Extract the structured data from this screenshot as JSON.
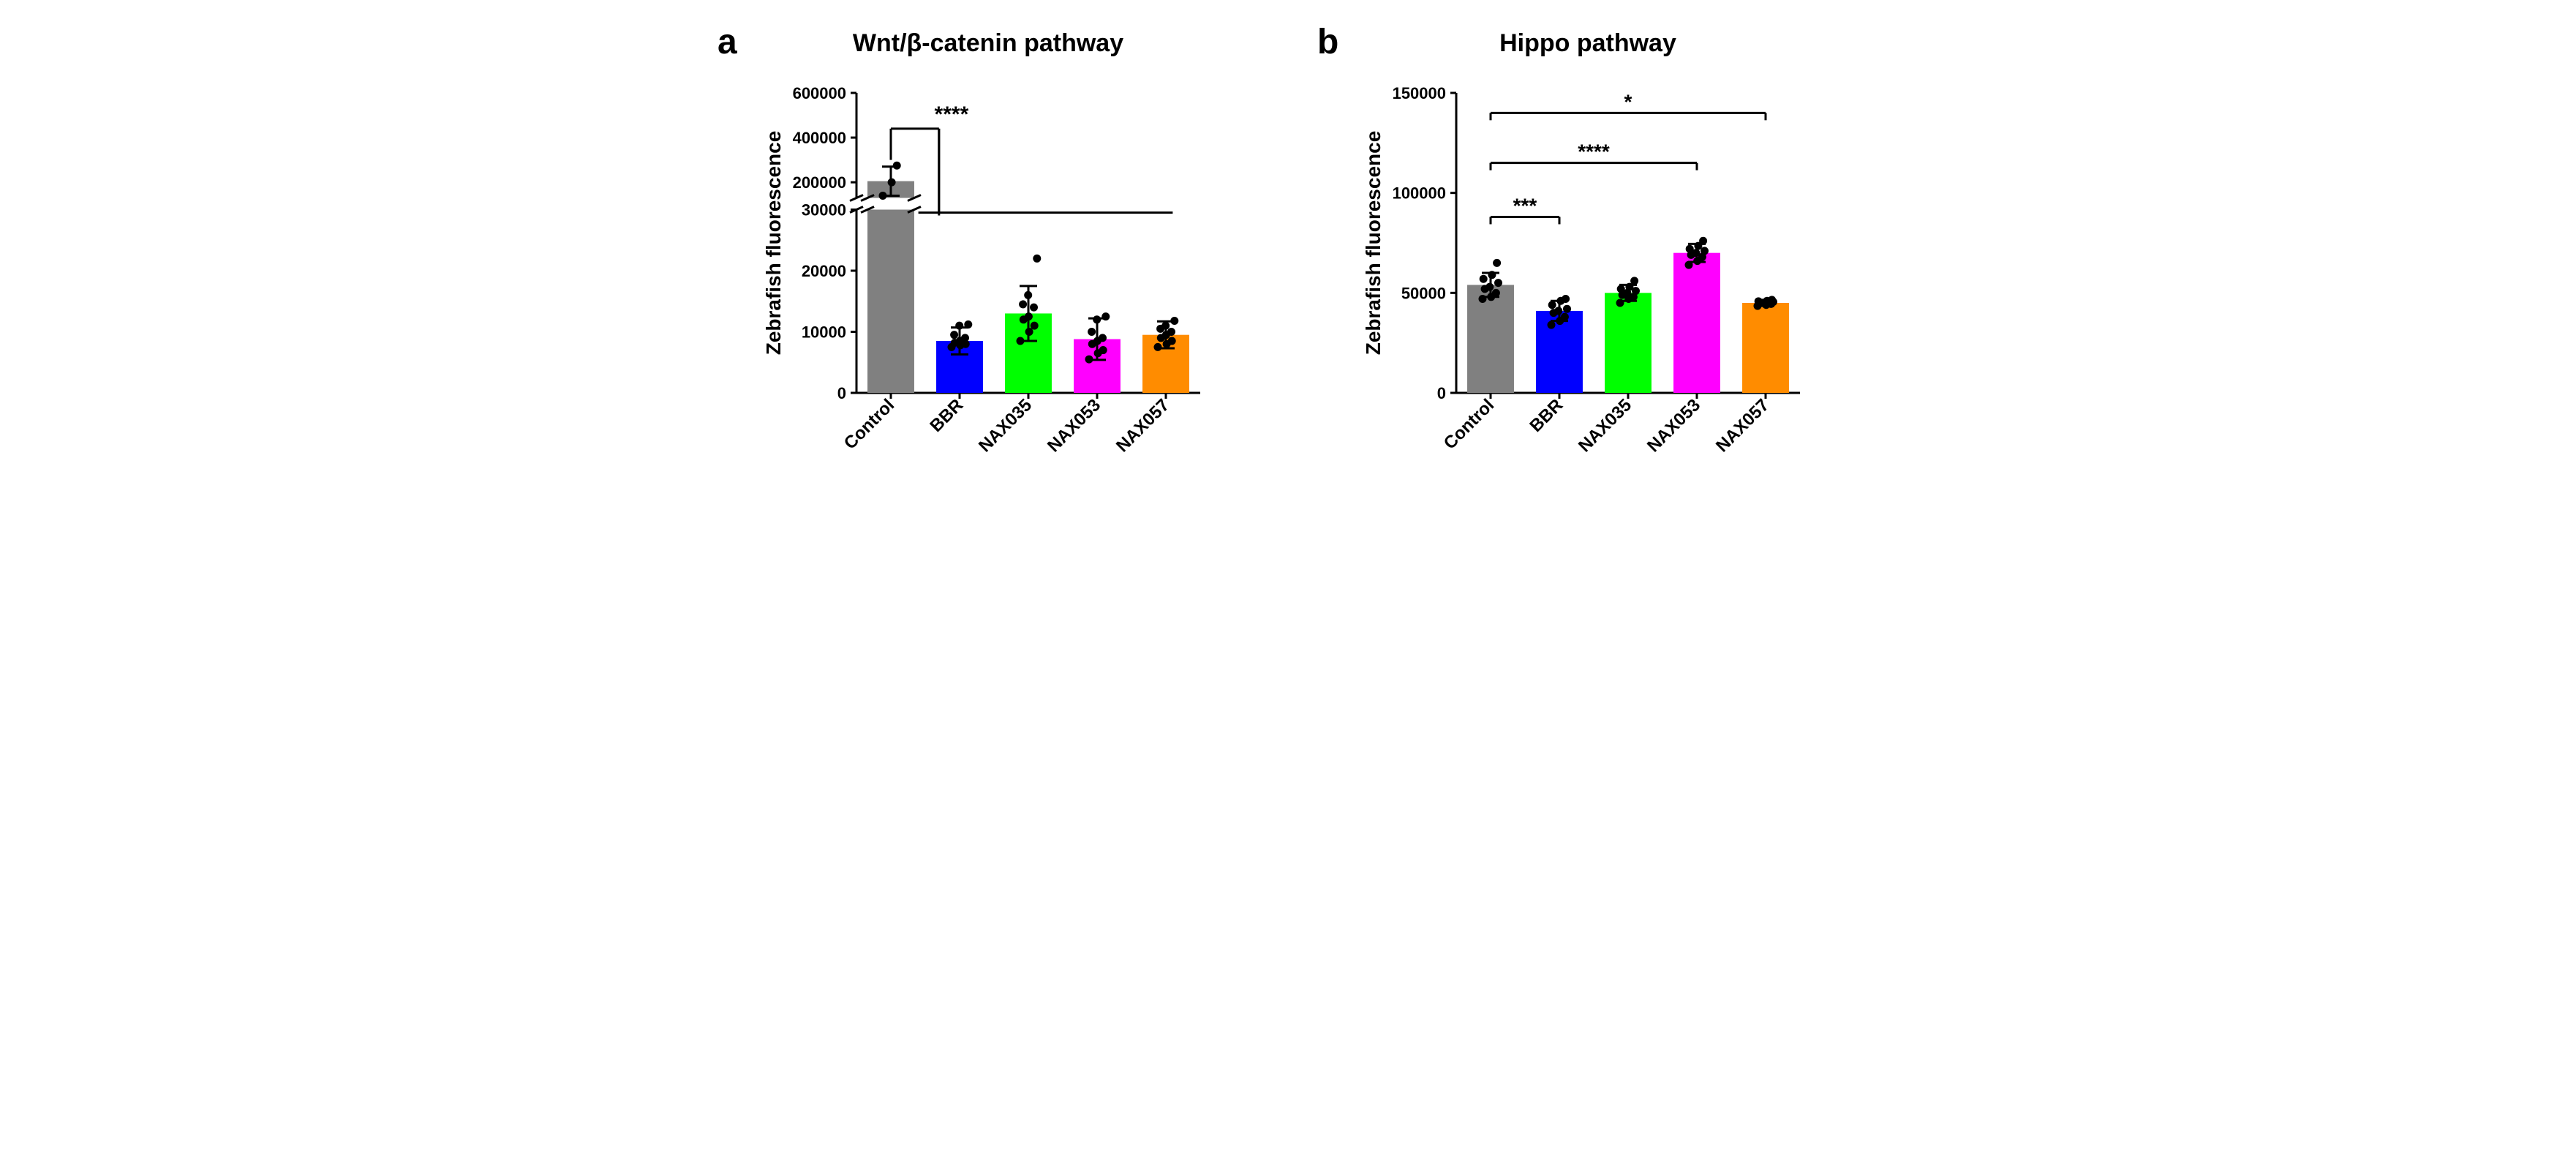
{
  "panel_a": {
    "label": "a",
    "title_html": "Wnt/β-catenin pathway",
    "ylabel": "Zebrafish fluorescence",
    "categories": [
      "Control",
      "BBR",
      "NAX035",
      "NAX053",
      "NAX057"
    ],
    "bar_colors": [
      "#808080",
      "#0000ff",
      "#00ff00",
      "#ff00ff",
      "#ff8c00"
    ],
    "break": {
      "lower_max": 30000,
      "upper_min": 130000,
      "upper_max": 600000
    },
    "lower_ticks": [
      0,
      10000,
      20000,
      30000
    ],
    "upper_ticks": [
      200000,
      400000,
      600000
    ],
    "bars": [
      {
        "mean": 205000,
        "err": 65000,
        "points": [
          140000,
          200000,
          275000
        ]
      },
      {
        "mean": 8500,
        "err": 2200,
        "points": [
          7500,
          7800,
          8000,
          8200,
          8500,
          9000,
          9500,
          11000,
          11200
        ]
      },
      {
        "mean": 13000,
        "err": 4500,
        "points": [
          8500,
          10000,
          11000,
          12000,
          12500,
          14000,
          14500,
          16000,
          22000
        ]
      },
      {
        "mean": 8800,
        "err": 3400,
        "points": [
          5500,
          6500,
          7000,
          8000,
          8500,
          9000,
          10000,
          12000,
          12500
        ]
      },
      {
        "mean": 9500,
        "err": 2200,
        "points": [
          7500,
          8000,
          8500,
          9000,
          9500,
          10000,
          10500,
          11000,
          11800
        ]
      }
    ],
    "sig": {
      "label": "****"
    },
    "axis_fontsize": 28,
    "tick_fontsize": 22,
    "cat_fontsize": 24
  },
  "panel_b": {
    "label": "b",
    "title_html": "Hippo pathway",
    "ylabel": "Zebrafish fluorescence",
    "categories": [
      "Control",
      "BBR",
      "NAX035",
      "NAX053",
      "NAX057"
    ],
    "bar_colors": [
      "#808080",
      "#0000ff",
      "#00ff00",
      "#ff00ff",
      "#ff8c00"
    ],
    "ylim": [
      0,
      150000
    ],
    "yticks": [
      0,
      50000,
      100000,
      150000
    ],
    "bars": [
      {
        "mean": 54000,
        "err": 6000,
        "points": [
          47000,
          48000,
          50000,
          52000,
          53000,
          55000,
          57000,
          59000,
          65000
        ]
      },
      {
        "mean": 41000,
        "err": 5000,
        "points": [
          34000,
          36000,
          38000,
          40000,
          41000,
          42000,
          44000,
          46000,
          47000
        ]
      },
      {
        "mean": 50000,
        "err": 4000,
        "points": [
          45000,
          47000,
          48000,
          49000,
          50000,
          51000,
          52000,
          53000,
          56000
        ]
      },
      {
        "mean": 70000,
        "err": 4500,
        "points": [
          64000,
          66000,
          68000,
          69000,
          70000,
          71000,
          72000,
          73500,
          76000
        ]
      },
      {
        "mean": 45000,
        "err": 1500,
        "points": [
          43500,
          44000,
          44500,
          45000,
          45200,
          45500,
          45800,
          46000,
          46500
        ]
      }
    ],
    "sigs": [
      {
        "from": 0,
        "to": 1,
        "label": "***",
        "y": 88000
      },
      {
        "from": 0,
        "to": 3,
        "label": "****",
        "y": 115000
      },
      {
        "from": 0,
        "to": 4,
        "label": "*",
        "y": 140000
      }
    ],
    "axis_fontsize": 28,
    "tick_fontsize": 22,
    "cat_fontsize": 24
  },
  "colors": {
    "axis": "#000000",
    "point_fill": "#000000",
    "background": "#ffffff"
  }
}
